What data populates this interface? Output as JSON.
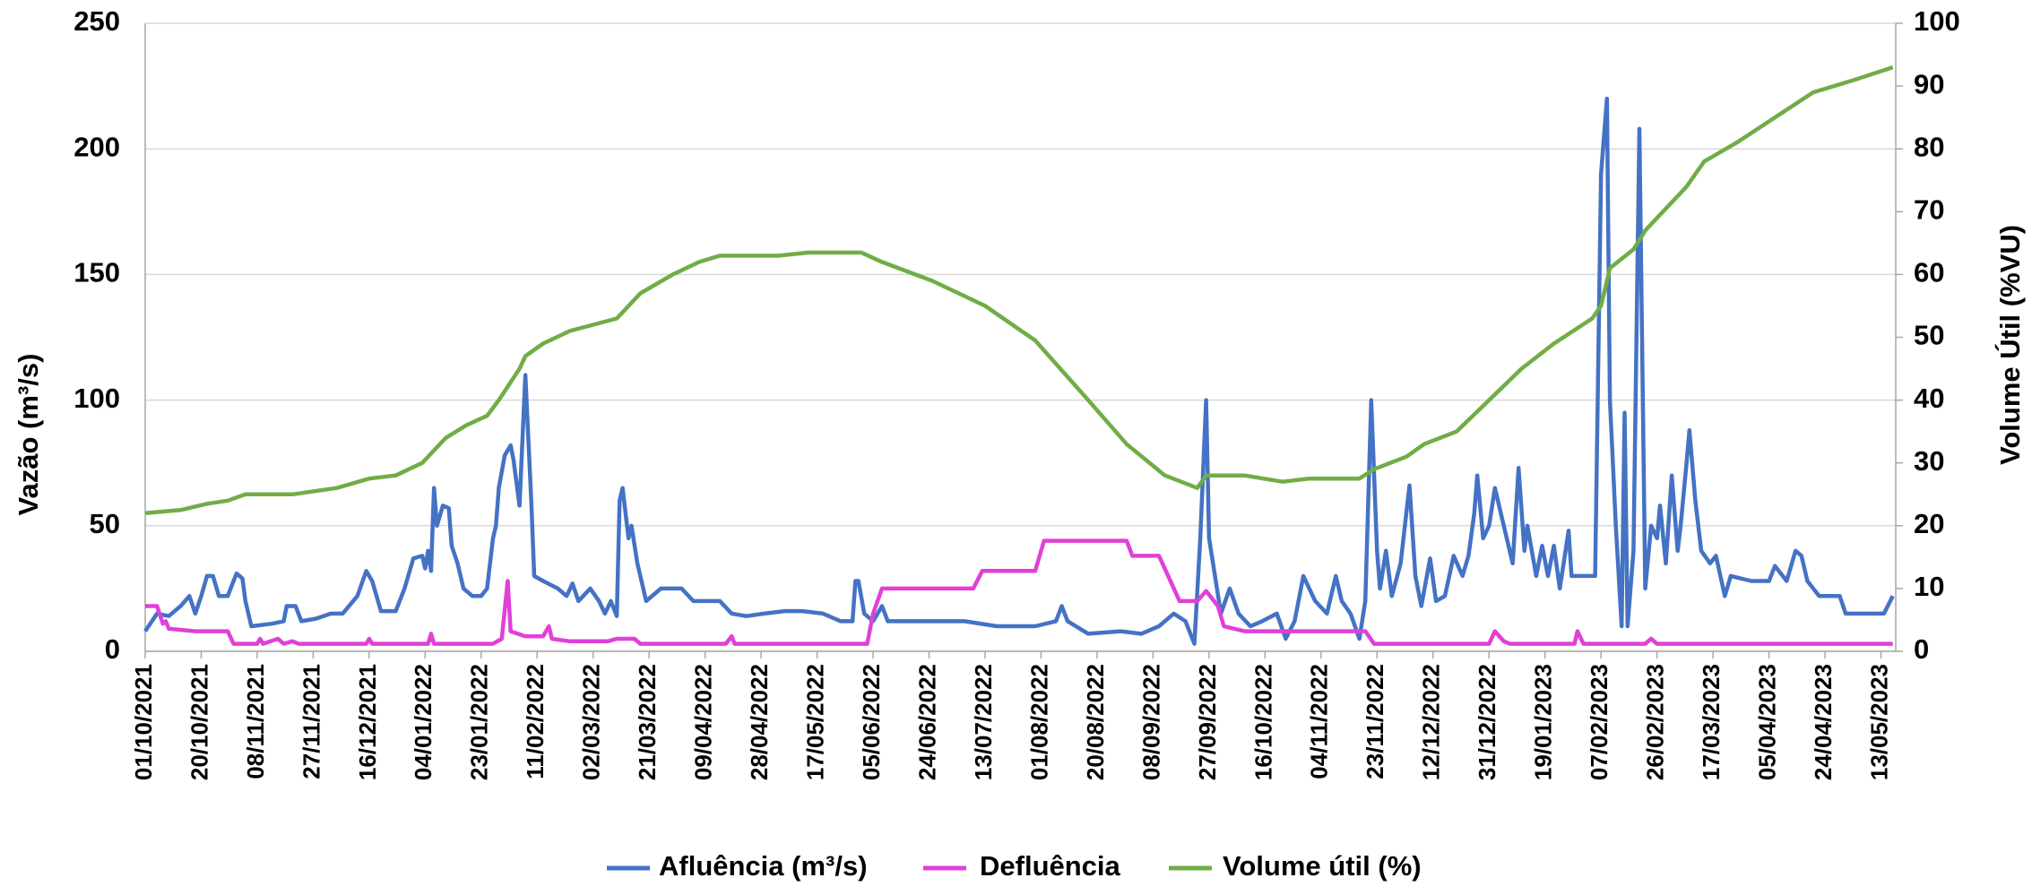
{
  "chart_data": {
    "type": "line",
    "y_label": "Vazão (m³/s)",
    "y2_label": "Volume Útil (%VU)",
    "xlim": [
      "01/10/2021",
      "18/05/2023"
    ],
    "xticks": [
      "01/10/2021",
      "20/10/2021",
      "08/11/2021",
      "27/11/2021",
      "16/12/2021",
      "04/01/2022",
      "23/01/2022",
      "11/02/2022",
      "02/03/2022",
      "21/03/2022",
      "09/04/2022",
      "28/04/2022",
      "17/05/2022",
      "05/06/2022",
      "24/06/2022",
      "13/07/2022",
      "01/08/2022",
      "20/08/2022",
      "08/09/2022",
      "27/09/2022",
      "16/10/2022",
      "04/11/2022",
      "23/11/2022",
      "12/12/2022",
      "31/12/2022",
      "19/01/2023",
      "07/02/2023",
      "26/02/2023",
      "17/03/2023",
      "05/04/2023",
      "24/04/2023",
      "13/05/2023"
    ],
    "ylim": [
      0,
      250
    ],
    "yticks": [
      0,
      50,
      100,
      150,
      200,
      250
    ],
    "y2lim": [
      0,
      100
    ],
    "y2ticks": [
      0,
      10,
      20,
      30,
      40,
      50,
      60,
      70,
      80,
      90,
      100
    ],
    "grid": true,
    "legend": "bottom",
    "series": [
      {
        "name": "Afluência (m³/s)",
        "color": "#4472c4",
        "x": [
          "01/10/2021",
          "05/10/2021",
          "09/10/2021",
          "13/10/2021",
          "16/10/2021",
          "18/10/2021",
          "20/10/2021",
          "22/10/2021",
          "24/10/2021",
          "26/10/2021",
          "29/10/2021",
          "30/10/2021",
          "01/11/2021",
          "03/11/2021",
          "04/11/2021",
          "06/11/2021",
          "13/11/2021",
          "17/11/2021",
          "18/11/2021",
          "21/11/2021",
          "23/11/2021",
          "28/11/2021",
          "03/12/2021",
          "07/12/2021",
          "12/12/2021",
          "15/12/2021",
          "17/12/2021",
          "20/12/2021",
          "25/12/2021",
          "28/12/2021",
          "31/12/2021",
          "03/01/2022",
          "04/01/2022",
          "05/01/2022",
          "06/01/2022",
          "07/01/2022",
          "08/01/2022",
          "10/01/2022",
          "12/01/2022",
          "13/01/2022",
          "15/01/2022",
          "17/01/2022",
          "20/01/2022",
          "23/01/2022",
          "25/01/2022",
          "27/01/2022",
          "28/01/2022",
          "29/01/2022",
          "31/01/2022",
          "02/02/2022",
          "03/02/2022",
          "05/02/2022",
          "07/02/2022",
          "09/02/2022",
          "10/02/2022",
          "13/02/2022",
          "18/02/2022",
          "21/02/2022",
          "23/02/2022",
          "25/02/2022",
          "01/03/2022",
          "04/03/2022",
          "06/03/2022",
          "08/03/2022",
          "10/03/2022",
          "11/03/2022",
          "12/03/2022",
          "14/03/2022",
          "15/03/2022",
          "17/03/2022",
          "20/03/2022",
          "25/03/2022",
          "01/04/2022",
          "05/04/2022",
          "14/04/2022",
          "18/04/2022",
          "23/04/2022",
          "29/04/2022",
          "06/05/2022",
          "12/05/2022",
          "19/05/2022",
          "25/05/2022",
          "29/05/2022",
          "30/05/2022",
          "31/05/2022",
          "02/06/2022",
          "05/06/2022",
          "08/06/2022",
          "10/06/2022",
          "16/06/2022",
          "25/06/2022",
          "06/07/2022",
          "17/07/2022",
          "30/07/2022",
          "06/08/2022",
          "08/08/2022",
          "10/08/2022",
          "17/08/2022",
          "28/08/2022",
          "04/09/2022",
          "10/09/2022",
          "15/09/2022",
          "19/09/2022",
          "22/09/2022",
          "24/09/2022",
          "26/09/2022",
          "27/09/2022",
          "29/09/2022",
          "01/10/2022",
          "04/10/2022",
          "07/10/2022",
          "11/10/2022",
          "15/10/2022",
          "20/10/2022",
          "23/10/2022",
          "26/10/2022",
          "29/10/2022",
          "31/10/2022",
          "02/11/2022",
          "06/11/2022",
          "09/11/2022",
          "11/11/2022",
          "14/11/2022",
          "17/11/2022",
          "19/11/2022",
          "21/11/2022",
          "23/11/2022",
          "24/11/2022",
          "26/11/2022",
          "28/11/2022",
          "01/12/2022",
          "04/12/2022",
          "06/12/2022",
          "08/12/2022",
          "11/12/2022",
          "13/12/2022",
          "16/12/2022",
          "19/12/2022",
          "22/12/2022",
          "24/12/2022",
          "26/12/2022",
          "27/12/2022",
          "29/12/2022",
          "31/12/2022",
          "02/01/2023",
          "05/01/2023",
          "07/01/2023",
          "08/01/2023",
          "10/01/2023",
          "12/01/2023",
          "13/01/2023",
          "16/01/2023",
          "18/01/2023",
          "20/01/2023",
          "22/01/2023",
          "24/01/2023",
          "27/01/2023",
          "28/01/2023",
          "02/02/2023",
          "05/02/2023",
          "07/02/2023",
          "09/02/2023",
          "10/02/2023",
          "12/02/2023",
          "14/02/2023",
          "15/02/2023",
          "16/02/2023",
          "18/02/2023",
          "20/02/2023",
          "22/02/2023",
          "24/02/2023",
          "26/02/2023",
          "27/02/2023",
          "01/03/2023",
          "03/03/2023",
          "05/03/2023",
          "06/03/2023",
          "08/03/2023",
          "09/03/2023",
          "11/03/2023",
          "13/03/2023",
          "16/03/2023",
          "18/03/2023",
          "21/03/2023",
          "23/03/2023",
          "30/03/2023",
          "05/04/2023",
          "07/04/2023",
          "11/04/2023",
          "14/04/2023",
          "16/04/2023",
          "18/04/2023",
          "22/04/2023",
          "29/04/2023",
          "01/05/2023",
          "08/05/2023",
          "14/05/2023",
          "17/05/2023"
        ],
        "values": [
          8,
          15,
          14,
          18,
          22,
          15,
          22,
          30,
          30,
          22,
          22,
          25,
          31,
          29,
          20,
          10,
          11,
          12,
          18,
          18,
          12,
          13,
          15,
          15,
          22,
          32,
          28,
          16,
          16,
          25,
          37,
          38,
          33,
          40,
          32,
          65,
          50,
          58,
          57,
          42,
          35,
          25,
          22,
          22,
          25,
          45,
          50,
          65,
          78,
          82,
          76,
          58,
          110,
          60,
          30,
          28,
          25,
          22,
          27,
          20,
          25,
          20,
          15,
          20,
          14,
          60,
          65,
          45,
          50,
          35,
          20,
          25,
          25,
          20,
          20,
          15,
          14,
          15,
          16,
          16,
          15,
          12,
          12,
          28,
          28,
          15,
          12,
          18,
          12,
          12,
          12,
          12,
          10,
          10,
          12,
          18,
          12,
          7,
          8,
          7,
          10,
          15,
          12,
          3,
          45,
          100,
          45,
          30,
          15,
          25,
          15,
          10,
          12,
          15,
          5,
          12,
          30,
          25,
          20,
          15,
          30,
          20,
          15,
          5,
          20,
          100,
          40,
          25,
          40,
          22,
          35,
          66,
          30,
          18,
          37,
          20,
          22,
          38,
          30,
          38,
          55,
          70,
          45,
          50,
          65,
          50,
          40,
          35,
          73,
          40,
          50,
          30,
          42,
          30,
          42,
          25,
          48,
          30,
          30,
          30,
          190,
          220,
          100,
          50,
          10,
          95,
          10,
          40,
          208,
          25,
          50,
          45,
          58,
          35,
          70,
          40,
          50,
          75,
          88,
          60,
          40,
          35,
          38,
          22,
          30,
          28,
          28,
          34,
          28,
          40,
          38,
          28,
          22,
          22,
          15,
          15,
          15,
          22
        ]
      },
      {
        "name": "Defluência",
        "color": "#e040d8",
        "x": [
          "01/10/2021",
          "05/10/2021",
          "07/10/2021",
          "08/10/2021",
          "09/10/2021",
          "18/10/2021",
          "29/10/2021",
          "31/10/2021",
          "08/11/2021",
          "09/11/2021",
          "10/11/2021",
          "15/11/2021",
          "17/11/2021",
          "20/11/2021",
          "22/11/2021",
          "15/12/2021",
          "16/12/2021",
          "17/12/2021",
          "05/01/2022",
          "06/01/2022",
          "07/01/2022",
          "27/01/2022",
          "30/01/2022",
          "01/02/2022",
          "02/02/2022",
          "07/02/2022",
          "13/02/2022",
          "15/02/2022",
          "16/02/2022",
          "22/02/2022",
          "07/03/2022",
          "10/03/2022",
          "16/03/2022",
          "18/03/2022",
          "16/04/2022",
          "18/04/2022",
          "19/04/2022",
          "03/06/2022",
          "05/06/2022",
          "08/06/2022",
          "16/06/2022",
          "09/07/2022",
          "12/07/2022",
          "30/07/2022",
          "02/08/2022",
          "30/08/2022",
          "01/09/2022",
          "10/09/2022",
          "17/09/2022",
          "23/09/2022",
          "26/09/2022",
          "30/09/2022",
          "02/10/2022",
          "09/10/2022",
          "26/10/2022",
          "19/11/2022",
          "22/11/2022",
          "31/12/2022",
          "02/01/2023",
          "05/01/2023",
          "07/01/2023",
          "29/01/2023",
          "30/01/2023",
          "01/02/2023",
          "22/02/2023",
          "24/02/2023",
          "26/02/2023",
          "17/05/2023"
        ],
        "values": [
          18,
          18,
          11,
          12,
          9,
          8,
          8,
          3,
          3,
          5,
          3,
          5,
          3,
          4,
          3,
          3,
          5,
          3,
          3,
          7,
          3,
          3,
          5,
          28,
          8,
          6,
          6,
          10,
          5,
          4,
          4,
          5,
          5,
          3,
          3,
          6,
          3,
          3,
          15,
          25,
          25,
          25,
          32,
          32,
          44,
          44,
          38,
          38,
          20,
          20,
          24,
          18,
          10,
          8,
          8,
          8,
          3,
          3,
          8,
          4,
          3,
          3,
          8,
          3,
          3,
          5,
          3,
          3
        ]
      },
      {
        "name": "Volume útil (%)",
        "color": "#70ad47",
        "axis": "y2",
        "x": [
          "01/10/2021",
          "13/10/2021",
          "22/10/2021",
          "29/10/2021",
          "04/11/2021",
          "20/11/2021",
          "05/12/2021",
          "16/12/2021",
          "25/12/2021",
          "03/01/2022",
          "11/01/2022",
          "18/01/2022",
          "25/01/2022",
          "29/01/2022",
          "05/02/2022",
          "07/02/2022",
          "13/02/2022",
          "22/02/2022",
          "10/03/2022",
          "18/03/2022",
          "29/03/2022",
          "07/04/2022",
          "14/04/2022",
          "04/05/2022",
          "14/05/2022",
          "01/06/2022",
          "08/06/2022",
          "25/06/2022",
          "13/07/2022",
          "30/07/2022",
          "17/08/2022",
          "30/08/2022",
          "12/09/2022",
          "23/09/2022",
          "26/09/2022",
          "09/10/2022",
          "22/10/2022",
          "31/10/2022",
          "17/11/2022",
          "22/11/2022",
          "03/12/2022",
          "09/12/2022",
          "20/12/2022",
          "31/12/2022",
          "11/01/2023",
          "22/01/2023",
          "04/02/2023",
          "07/02/2023",
          "10/02/2023",
          "18/02/2023",
          "22/02/2023",
          "08/03/2023",
          "14/03/2023",
          "25/03/2023",
          "07/04/2023",
          "20/04/2023",
          "04/05/2023",
          "17/05/2023"
        ],
        "values": [
          22,
          22.5,
          23.5,
          24,
          25,
          25,
          26,
          27.5,
          28,
          30,
          34,
          36,
          37.5,
          40,
          45,
          47,
          49,
          51,
          53,
          57,
          60,
          62,
          63,
          63,
          63.5,
          63.5,
          62,
          59,
          55,
          49.5,
          40,
          33,
          28,
          26,
          28,
          28,
          27,
          27.5,
          27.5,
          29,
          31,
          33,
          35,
          40,
          45,
          49,
          53,
          55,
          61,
          64,
          67,
          74,
          78,
          81,
          85,
          89,
          91,
          93
        ]
      }
    ]
  }
}
